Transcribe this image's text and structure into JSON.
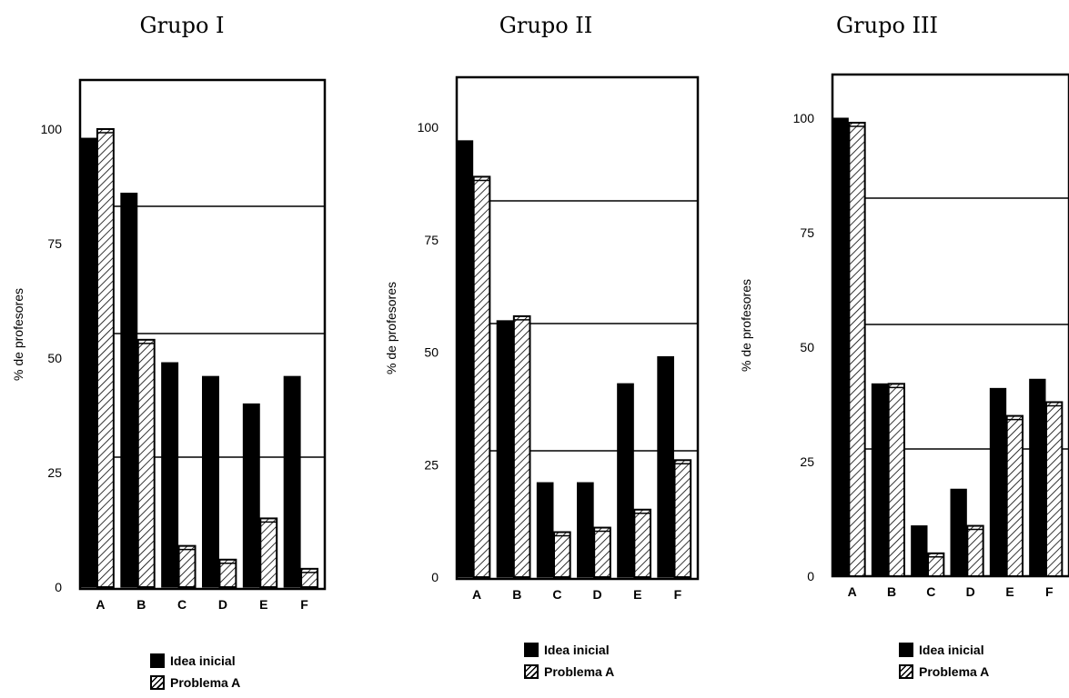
{
  "chart_data": [
    {
      "type": "bar",
      "title": "Grupo I",
      "ylabel": "% de profesores",
      "ylim": [
        0,
        110
      ],
      "yticks": [
        "0",
        "25",
        "50",
        "75",
        "100"
      ],
      "categories": [
        "A",
        "B",
        "C",
        "D",
        "E",
        "F"
      ],
      "series": [
        {
          "name": "Idea inicial",
          "values": [
            98,
            86,
            49,
            46,
            40,
            46
          ]
        },
        {
          "name": "Problema A",
          "values": [
            100,
            54,
            9,
            6,
            15,
            4
          ]
        }
      ],
      "legend": [
        "Idea inicial",
        "Problema A"
      ],
      "legend_position": "bottom"
    },
    {
      "type": "bar",
      "title": "Grupo II",
      "ylabel": "% de profesores",
      "ylim": [
        0,
        110
      ],
      "yticks": [
        "0",
        "25",
        "50",
        "75",
        "100"
      ],
      "categories": [
        "A",
        "B",
        "C",
        "D",
        "E",
        "F"
      ],
      "series": [
        {
          "name": "Idea inicial",
          "values": [
            97,
            57,
            21,
            21,
            43,
            49
          ]
        },
        {
          "name": "Problema A",
          "values": [
            89,
            58,
            10,
            11,
            15,
            26
          ]
        }
      ],
      "legend": [
        "Idea inicial",
        "Problema A"
      ],
      "legend_position": "bottom"
    },
    {
      "type": "bar",
      "title": "Grupo III",
      "ylabel": "% de profesores",
      "ylim": [
        0,
        110
      ],
      "yticks": [
        "0",
        "25",
        "50",
        "75",
        "100"
      ],
      "categories": [
        "A",
        "B",
        "C",
        "D",
        "E",
        "F"
      ],
      "series": [
        {
          "name": "Idea inicial",
          "values": [
            100,
            42,
            11,
            19,
            41,
            43
          ]
        },
        {
          "name": "Problema A",
          "values": [
            99,
            42,
            5,
            11,
            35,
            38
          ]
        }
      ],
      "legend": [
        "Idea inicial",
        "Problema A"
      ],
      "legend_position": "bottom"
    }
  ],
  "colors": {
    "idea_inicial": "#000000",
    "problema_a": "hatched"
  }
}
